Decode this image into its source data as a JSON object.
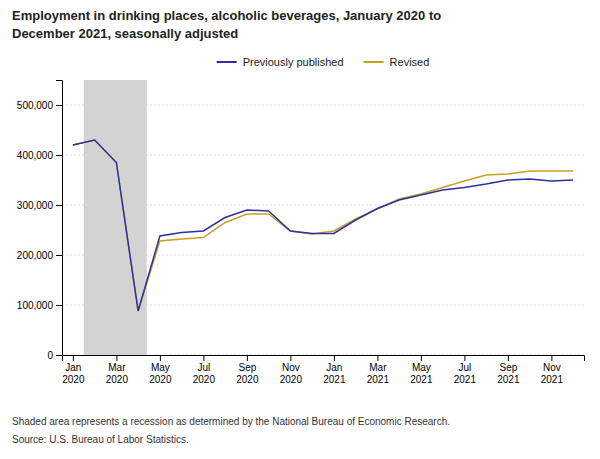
{
  "chart_data": {
    "type": "line",
    "title": "Employment in drinking places, alcoholic beverages, January 2020 to\nDecember 2021, seasonally adjusted",
    "categories": [
      "Jan\n2020",
      null,
      "Mar\n2020",
      null,
      "May\n2020",
      null,
      "Jul\n2020",
      null,
      "Sep\n2020",
      null,
      "Nov\n2020",
      null,
      "Jan\n2021",
      null,
      "Mar\n2021",
      null,
      "May\n2021",
      null,
      "Jul\n2021",
      null,
      "Sep\n2021",
      null,
      "Nov\n2021",
      null
    ],
    "series": [
      {
        "name": "Previously published",
        "color": "#2B2FA8",
        "values": [
          420000,
          430000,
          385000,
          88000,
          238000,
          245000,
          248000,
          275000,
          290000,
          288000,
          248000,
          243000,
          243000,
          270000,
          293000,
          310000,
          320000,
          330000,
          335000,
          342000,
          350000,
          352000,
          348000,
          350000
        ]
      },
      {
        "name": "Revised",
        "color": "#C8A020",
        "values": [
          420000,
          430000,
          385000,
          88000,
          228000,
          232000,
          235000,
          265000,
          282000,
          282000,
          248000,
          242000,
          248000,
          272000,
          292000,
          312000,
          322000,
          335000,
          348000,
          360000,
          362000,
          368000,
          368000,
          368000
        ]
      }
    ],
    "ylim": [
      0,
      550000
    ],
    "yticks": [
      0,
      {
        "value": 100000,
        "label": "100,000"
      },
      {
        "value": 200000,
        "label": "200,000"
      },
      {
        "value": 300000,
        "label": "300,000"
      },
      {
        "value": 400000,
        "label": "400,000"
      },
      {
        "value": 500000,
        "label": "500,000"
      }
    ],
    "grid": true,
    "legend": "top",
    "shading": {
      "from": 0.5,
      "to": 3.4,
      "color": "#D3D3D3"
    },
    "annotations": [
      "Shaded area represents a recession as determined by the National Bureau of Economic Research.",
      "Source: U.S. Bureau of Labor Statistics."
    ]
  }
}
